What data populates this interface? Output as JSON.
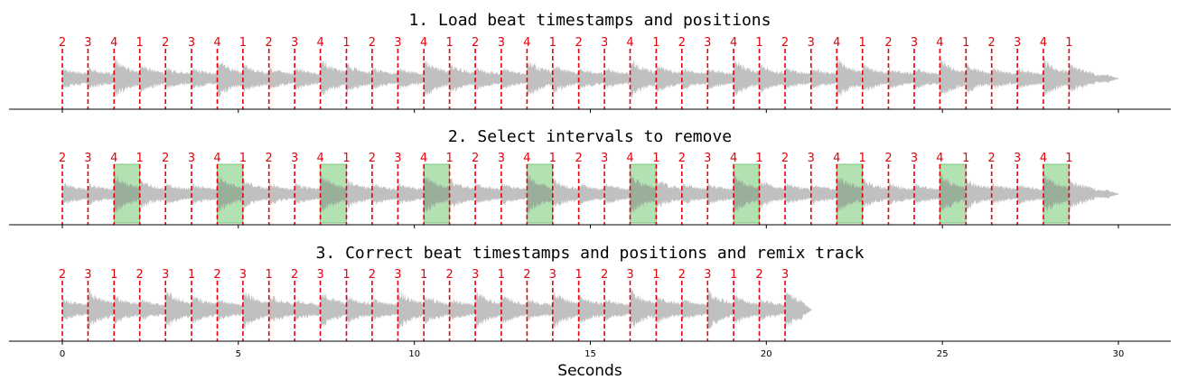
{
  "figure": {
    "xlabel": "Seconds",
    "xlim": [
      0,
      30
    ],
    "x_ticks": [
      0,
      5,
      10,
      15,
      20,
      25,
      30
    ],
    "colors": {
      "waveform": "#c0c0c0",
      "beat_line": "#e8000b",
      "beat_label": "#e8000b",
      "removed_interval": "#98d898",
      "axis": "#000000"
    }
  },
  "panels": [
    {
      "title": "1. Load beat timestamps and positions",
      "track_end": 30.0,
      "beat_times": [
        0.0,
        0.73,
        1.47,
        2.2,
        2.93,
        3.67,
        4.4,
        5.13,
        5.87,
        6.6,
        7.33,
        8.07,
        8.8,
        9.53,
        10.27,
        11.0,
        11.73,
        12.47,
        13.2,
        13.93,
        14.67,
        15.4,
        16.13,
        16.87,
        17.6,
        18.33,
        19.07,
        19.8,
        20.53,
        21.27,
        22.0,
        22.73,
        23.47,
        24.2,
        24.93,
        25.67,
        26.4,
        27.13,
        27.87,
        28.6
      ],
      "beat_positions": [
        "2",
        "3",
        "4",
        "1",
        "2",
        "3",
        "4",
        "1",
        "2",
        "3",
        "4",
        "1",
        "2",
        "3",
        "4",
        "1",
        "2",
        "3",
        "4",
        "1",
        "2",
        "3",
        "4",
        "1",
        "2",
        "3",
        "4",
        "1",
        "2",
        "3",
        "4",
        "1",
        "2",
        "3",
        "4",
        "1",
        "2",
        "3",
        "4",
        "1"
      ],
      "removed_intervals": []
    },
    {
      "title": "2. Select intervals to remove",
      "track_end": 30.0,
      "beat_times": [
        0.0,
        0.73,
        1.47,
        2.2,
        2.93,
        3.67,
        4.4,
        5.13,
        5.87,
        6.6,
        7.33,
        8.07,
        8.8,
        9.53,
        10.27,
        11.0,
        11.73,
        12.47,
        13.2,
        13.93,
        14.67,
        15.4,
        16.13,
        16.87,
        17.6,
        18.33,
        19.07,
        19.8,
        20.53,
        21.27,
        22.0,
        22.73,
        23.47,
        24.2,
        24.93,
        25.67,
        26.4,
        27.13,
        27.87,
        28.6
      ],
      "beat_positions": [
        "2",
        "3",
        "4",
        "1",
        "2",
        "3",
        "4",
        "1",
        "2",
        "3",
        "4",
        "1",
        "2",
        "3",
        "4",
        "1",
        "2",
        "3",
        "4",
        "1",
        "2",
        "3",
        "4",
        "1",
        "2",
        "3",
        "4",
        "1",
        "2",
        "3",
        "4",
        "1",
        "2",
        "3",
        "4",
        "1",
        "2",
        "3",
        "4",
        "1"
      ],
      "removed_intervals": [
        [
          1.47,
          2.2
        ],
        [
          4.4,
          5.13
        ],
        [
          7.33,
          8.07
        ],
        [
          10.27,
          11.0
        ],
        [
          13.2,
          13.93
        ],
        [
          16.13,
          16.87
        ],
        [
          19.07,
          19.8
        ],
        [
          22.0,
          22.73
        ],
        [
          24.93,
          25.67
        ],
        [
          27.87,
          28.6
        ]
      ]
    },
    {
      "title": "3. Correct beat timestamps and positions and remix track",
      "track_end": 21.3,
      "beat_times": [
        0.0,
        0.73,
        1.47,
        2.2,
        2.93,
        3.67,
        4.4,
        5.13,
        5.87,
        6.6,
        7.33,
        8.07,
        8.8,
        9.53,
        10.27,
        11.0,
        11.73,
        12.47,
        13.2,
        13.93,
        14.67,
        15.4,
        16.13,
        16.87,
        17.6,
        18.33,
        19.07,
        19.8,
        20.53
      ],
      "beat_positions": [
        "2",
        "3",
        "1",
        "2",
        "3",
        "1",
        "2",
        "3",
        "1",
        "2",
        "3",
        "1",
        "2",
        "3",
        "1",
        "2",
        "3",
        "1",
        "2",
        "3",
        "1",
        "2",
        "3",
        "1",
        "2",
        "3",
        "1",
        "2",
        "3"
      ],
      "removed_intervals": []
    }
  ]
}
